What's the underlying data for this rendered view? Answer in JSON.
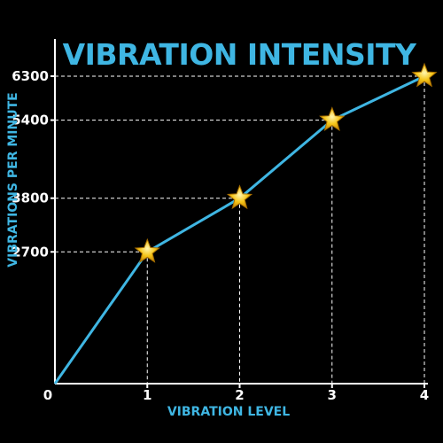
{
  "chart_data": {
    "type": "line",
    "title": "VIBRATION INTENSITY",
    "xlabel": "VIBRATION LEVEL",
    "ylabel": "VIBRATIONS PER MINUTE",
    "x": [
      0,
      1,
      2,
      3,
      4
    ],
    "series": [
      {
        "values": [
          0,
          2700,
          3800,
          5400,
          6300
        ]
      }
    ],
    "marked_points": [
      {
        "x": 1,
        "y": 2700
      },
      {
        "x": 2,
        "y": 3800
      },
      {
        "x": 3,
        "y": 5400
      },
      {
        "x": 4,
        "y": 6300
      }
    ],
    "x_ticks": [
      "0",
      "1",
      "2",
      "3",
      "4"
    ],
    "y_ticks": [
      2700,
      3800,
      5400,
      6300
    ],
    "y_tick_labels": [
      "2700",
      "3800",
      "5400",
      "6300"
    ],
    "xlim": [
      0,
      4
    ],
    "ylim": [
      0,
      6300
    ],
    "grid": false,
    "legend": "none",
    "marker": "star-icon",
    "colors": {
      "background": "#000000",
      "line": "#3fb6e3",
      "title": "#3fb6e3",
      "axis": "#ffffff",
      "guide": "#ffffff",
      "star": "#f5c518"
    }
  }
}
